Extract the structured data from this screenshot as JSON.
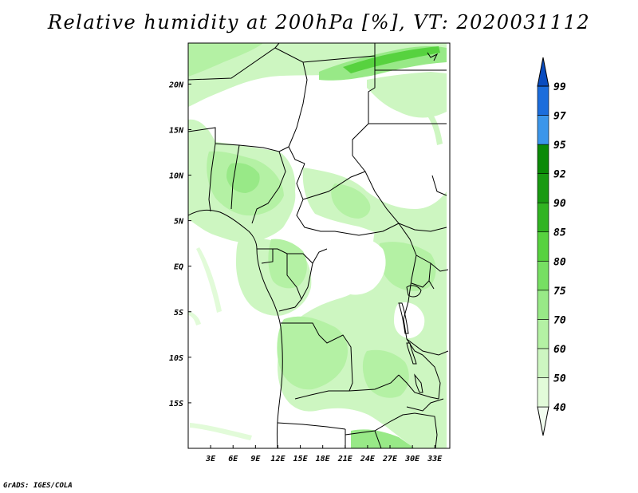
{
  "title": "Relative humidity at 200hPa [%], VT: 2020031112",
  "credit": "GrADS: IGES/COLA",
  "map": {
    "lon_labels": [
      "3E",
      "6E",
      "9E",
      "12E",
      "15E",
      "18E",
      "21E",
      "24E",
      "27E",
      "30E",
      "33E"
    ],
    "lat_labels": [
      "20N",
      "15N",
      "10N",
      "5N",
      "EQ",
      "5S",
      "10S",
      "15S"
    ],
    "lon_range": [
      0,
      35
    ],
    "lat_range": [
      -20,
      24.5
    ]
  },
  "colorbar": {
    "levels": [
      "40",
      "50",
      "60",
      "70",
      "75",
      "80",
      "85",
      "90",
      "92",
      "95",
      "97",
      "99"
    ],
    "colors": [
      "#f2fdf0",
      "#e2fbd9",
      "#cdf6c1",
      "#b4f1a4",
      "#98e987",
      "#77df63",
      "#57d23f",
      "#31b422",
      "#199a12",
      "#0b8a07",
      "#3c96ea",
      "#1c6ddc",
      "#0a4cbf"
    ]
  }
}
